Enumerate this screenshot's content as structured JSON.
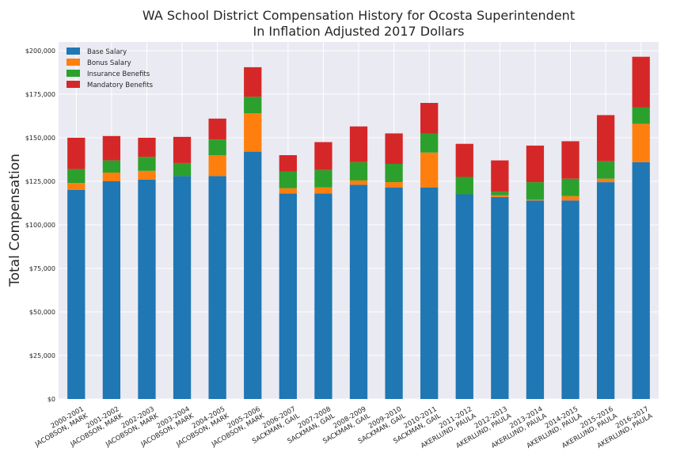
{
  "chart_data": {
    "type": "bar",
    "stacked": true,
    "title_line1": "WA School District Compensation History for Ocosta Superintendent",
    "title_line2": "In Inflation Adjusted 2017 Dollars",
    "xlabel": "",
    "ylabel": "Total Compensation",
    "ylim": [
      0,
      205000
    ],
    "yticks": [
      0,
      25000,
      50000,
      75000,
      100000,
      125000,
      150000,
      175000,
      200000
    ],
    "ytick_labels": [
      "$0",
      "$25,000",
      "$50,000",
      "$75,000",
      "$100,000",
      "$125,000",
      "$150,000",
      "$175,000",
      "$200,000"
    ],
    "grid": true,
    "legend_position": "top-left",
    "categories": [
      [
        "2000-2001",
        "JACOBSON, MARK"
      ],
      [
        "2001-2002",
        "JACOBSON, MARK"
      ],
      [
        "2002-2003",
        "JACOBSON, MARK"
      ],
      [
        "2003-2004",
        "JACOBSON, MARK"
      ],
      [
        "2004-2005",
        "JACOBSON, MARK"
      ],
      [
        "2005-2006",
        "JACOBSON, MARK"
      ],
      [
        "2006-2007",
        "SACKMAN, GAIL"
      ],
      [
        "2007-2008",
        "SACKMAN, GAIL"
      ],
      [
        "2008-2009",
        "SACKMAN, GAIL"
      ],
      [
        "2009-2010",
        "SACKMAN, GAIL"
      ],
      [
        "2010-2011",
        "SACKMAN, GAIL"
      ],
      [
        "2011-2012",
        "AKERLUND, PAULA"
      ],
      [
        "2012-2013",
        "AKERLUND, PAULA"
      ],
      [
        "2013-2014",
        "AKERLUND, PAULA"
      ],
      [
        "2014-2015",
        "AKERLUND, PAULA"
      ],
      [
        "2015-2016",
        "AKERLUND, PAULA"
      ],
      [
        "2016-2017",
        "AKERLUND, PAULA"
      ]
    ],
    "series": [
      {
        "name": "Base Salary",
        "color": "#1f77b4",
        "values": [
          120000,
          125000,
          126000,
          128000,
          128000,
          142000,
          118000,
          118000,
          123000,
          121500,
          121500,
          117500,
          116000,
          114000,
          114000,
          124500,
          136000
        ]
      },
      {
        "name": "Bonus Salary",
        "color": "#ff7f0e",
        "values": [
          4000,
          5000,
          5000,
          0,
          12000,
          22000,
          3000,
          3500,
          2500,
          3000,
          20000,
          0,
          1000,
          500,
          2500,
          2000,
          22000
        ]
      },
      {
        "name": "Insurance Benefits",
        "color": "#2ca02c",
        "values": [
          8000,
          7000,
          8000,
          7500,
          9000,
          9500,
          9500,
          10000,
          10500,
          10500,
          11000,
          10000,
          2000,
          10000,
          10000,
          10000,
          9500
        ]
      },
      {
        "name": "Mandatory Benefits",
        "color": "#d62728",
        "values": [
          18000,
          14000,
          11000,
          15000,
          12000,
          17000,
          9500,
          16000,
          20500,
          17500,
          17500,
          19000,
          18000,
          21000,
          21500,
          26500,
          29000
        ]
      }
    ]
  }
}
